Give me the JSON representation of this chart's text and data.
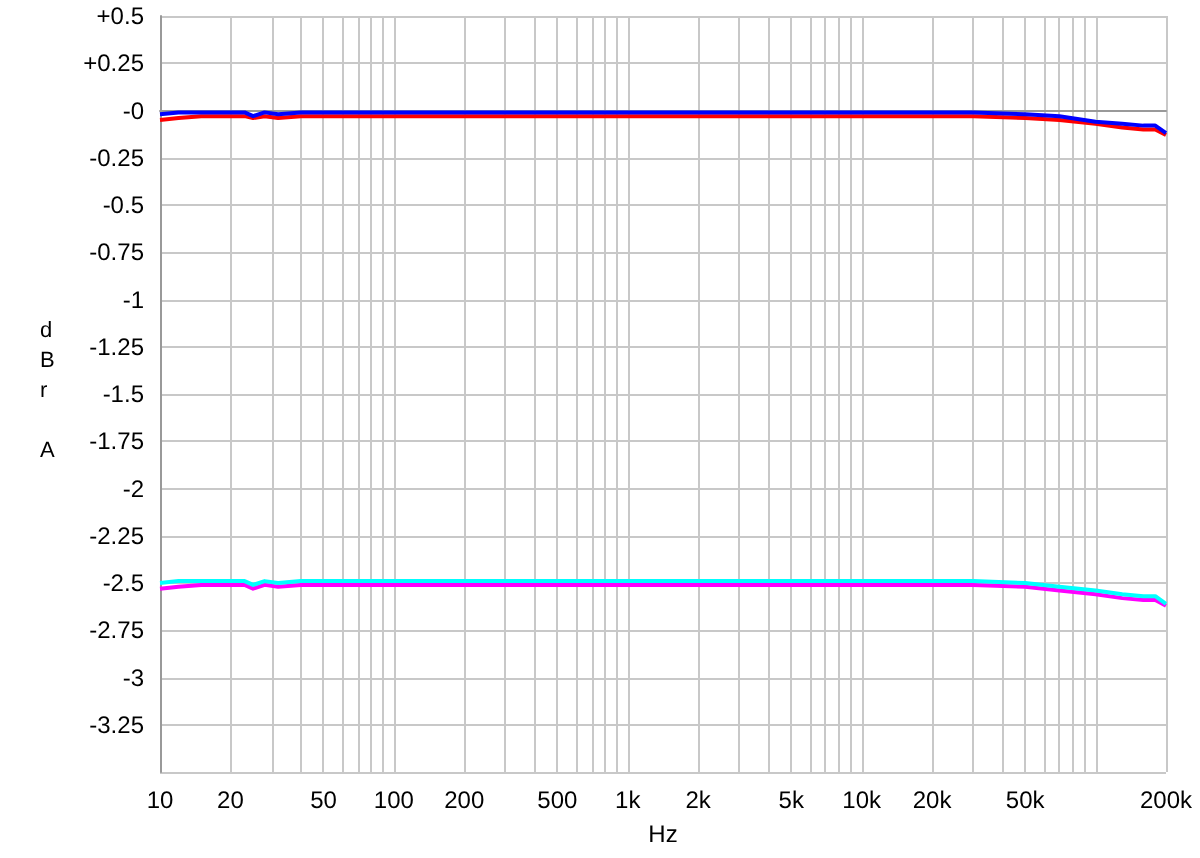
{
  "chart_data": {
    "type": "line",
    "xlabel": "Hz",
    "ylabel": "dBr A",
    "log": "x",
    "grid": true,
    "marker": "none",
    "line_style": "solid",
    "xlim": [
      10,
      200000
    ],
    "ylim": [
      -3.5,
      0.5
    ],
    "xticks": [
      10,
      20,
      50,
      100,
      200,
      500,
      {
        "value": 1000,
        "label": "1k"
      },
      {
        "value": 2000,
        "label": "2k"
      },
      {
        "value": 5000,
        "label": "5k"
      },
      {
        "value": 10000,
        "label": "10k"
      },
      {
        "value": 20000,
        "label": "20k"
      },
      {
        "value": 50000,
        "label": "50k"
      },
      {
        "value": 200000,
        "label": "200k"
      }
    ],
    "yticks": [
      {
        "value": 0.5,
        "label": "+0.5"
      },
      {
        "value": 0.25,
        "label": "+0.25"
      },
      {
        "value": 0,
        "label": "-0"
      },
      -0.25,
      -0.5,
      -0.75,
      -1,
      -1.25,
      -1.5,
      -1.75,
      -2,
      -2.25,
      -2.5,
      -2.75,
      -3,
      -3.25,
      {
        "value": -3.5,
        "label": null
      }
    ],
    "x": [
      10,
      12,
      15,
      20,
      23,
      25,
      28,
      32,
      40,
      60,
      100,
      1000,
      10000,
      20000,
      30000,
      50000,
      70000,
      100000,
      130000,
      160000,
      180000,
      200000
    ],
    "series": [
      {
        "color": "#ff0000",
        "values": [
          -0.05,
          -0.04,
          -0.03,
          -0.03,
          -0.03,
          -0.04,
          -0.03,
          -0.04,
          -0.03,
          -0.03,
          -0.03,
          -0.03,
          -0.03,
          -0.03,
          -0.03,
          -0.04,
          -0.05,
          -0.07,
          -0.09,
          -0.1,
          -0.1,
          -0.13
        ]
      },
      {
        "color": "#0000ff",
        "values": [
          -0.02,
          -0.01,
          -0.01,
          -0.01,
          -0.01,
          -0.03,
          -0.01,
          -0.02,
          -0.01,
          -0.01,
          -0.01,
          -0.01,
          -0.01,
          -0.01,
          -0.01,
          -0.02,
          -0.03,
          -0.06,
          -0.07,
          -0.08,
          -0.08,
          -0.12
        ]
      },
      {
        "color": "#ff00ff",
        "values": [
          -2.53,
          -2.52,
          -2.51,
          -2.51,
          -2.51,
          -2.53,
          -2.51,
          -2.52,
          -2.51,
          -2.51,
          -2.51,
          -2.51,
          -2.51,
          -2.51,
          -2.51,
          -2.52,
          -2.54,
          -2.56,
          -2.58,
          -2.59,
          -2.59,
          -2.62
        ]
      },
      {
        "color": "#00ffff",
        "values": [
          -2.5,
          -2.49,
          -2.49,
          -2.49,
          -2.49,
          -2.51,
          -2.49,
          -2.5,
          -2.49,
          -2.49,
          -2.49,
          -2.49,
          -2.49,
          -2.49,
          -2.49,
          -2.5,
          -2.52,
          -2.54,
          -2.56,
          -2.57,
          -2.57,
          -2.61
        ]
      }
    ]
  }
}
